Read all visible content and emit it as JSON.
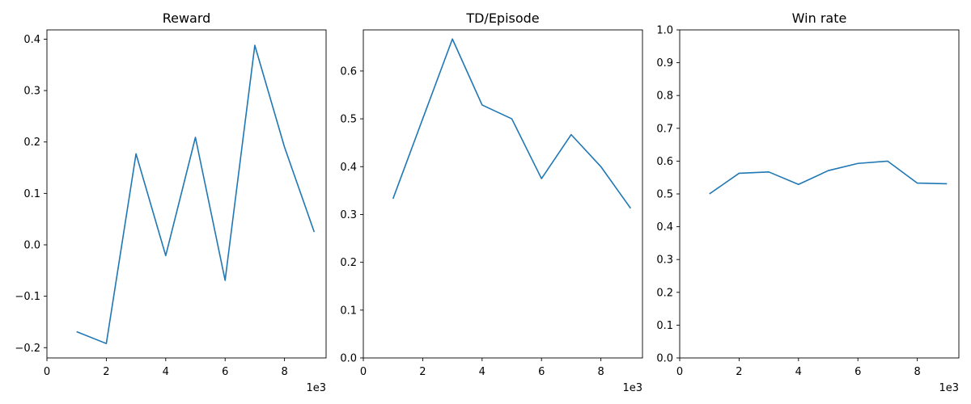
{
  "chart_data": [
    {
      "type": "line",
      "title": "Reward",
      "x_scale_label": "1e3",
      "xlim": [
        0,
        9400
      ],
      "ylim": [
        -0.22,
        0.418
      ],
      "xticks": [
        0,
        2000,
        4000,
        6000,
        8000
      ],
      "xtick_labels": [
        "0",
        "2",
        "4",
        "6",
        "8"
      ],
      "yticks": [
        -0.2,
        -0.1,
        0.0,
        0.1,
        0.2,
        0.3,
        0.4
      ],
      "ytick_labels": [
        "−0.2",
        "−0.1",
        "0.0",
        "0.1",
        "0.2",
        "0.3",
        "0.4"
      ],
      "color": "#1f77b4",
      "series": [
        {
          "x": [
            1000,
            2000,
            3000,
            4000,
            5000,
            6000,
            7000,
            8000,
            9000
          ],
          "y": [
            -0.169,
            -0.192,
            0.177,
            -0.021,
            0.209,
            -0.069,
            0.388,
            0.19,
            0.025
          ]
        }
      ]
    },
    {
      "type": "line",
      "title": "TD/Episode",
      "x_scale_label": "1e3",
      "xlim": [
        0,
        9400
      ],
      "ylim": [
        0.0,
        0.686
      ],
      "xticks": [
        0,
        2000,
        4000,
        6000,
        8000
      ],
      "xtick_labels": [
        "0",
        "2",
        "4",
        "6",
        "8"
      ],
      "yticks": [
        0.0,
        0.1,
        0.2,
        0.3,
        0.4,
        0.5,
        0.6
      ],
      "ytick_labels": [
        "0.0",
        "0.1",
        "0.2",
        "0.3",
        "0.4",
        "0.5",
        "0.6"
      ],
      "color": "#1f77b4",
      "series": [
        {
          "x": [
            1000,
            2000,
            3000,
            4000,
            5000,
            6000,
            7000,
            8000,
            9000
          ],
          "y": [
            0.333,
            0.5,
            0.667,
            0.529,
            0.5,
            0.375,
            0.467,
            0.4,
            0.313
          ]
        }
      ]
    },
    {
      "type": "line",
      "title": "Win rate",
      "x_scale_label": "1e3",
      "xlim": [
        0,
        9400
      ],
      "ylim": [
        0.0,
        1.0
      ],
      "xticks": [
        0,
        2000,
        4000,
        6000,
        8000
      ],
      "xtick_labels": [
        "0",
        "2",
        "4",
        "6",
        "8"
      ],
      "yticks": [
        0.0,
        0.1,
        0.2,
        0.3,
        0.4,
        0.5,
        0.6,
        0.7,
        0.8,
        0.9,
        1.0
      ],
      "ytick_labels": [
        "0.0",
        "0.1",
        "0.2",
        "0.3",
        "0.4",
        "0.5",
        "0.6",
        "0.7",
        "0.8",
        "0.9",
        "1.0"
      ],
      "color": "#1f77b4",
      "series": [
        {
          "x": [
            1000,
            2000,
            3000,
            4000,
            5000,
            6000,
            7000,
            8000,
            9000
          ],
          "y": [
            0.5,
            0.563,
            0.567,
            0.529,
            0.571,
            0.593,
            0.6,
            0.533,
            0.531
          ]
        }
      ]
    }
  ]
}
